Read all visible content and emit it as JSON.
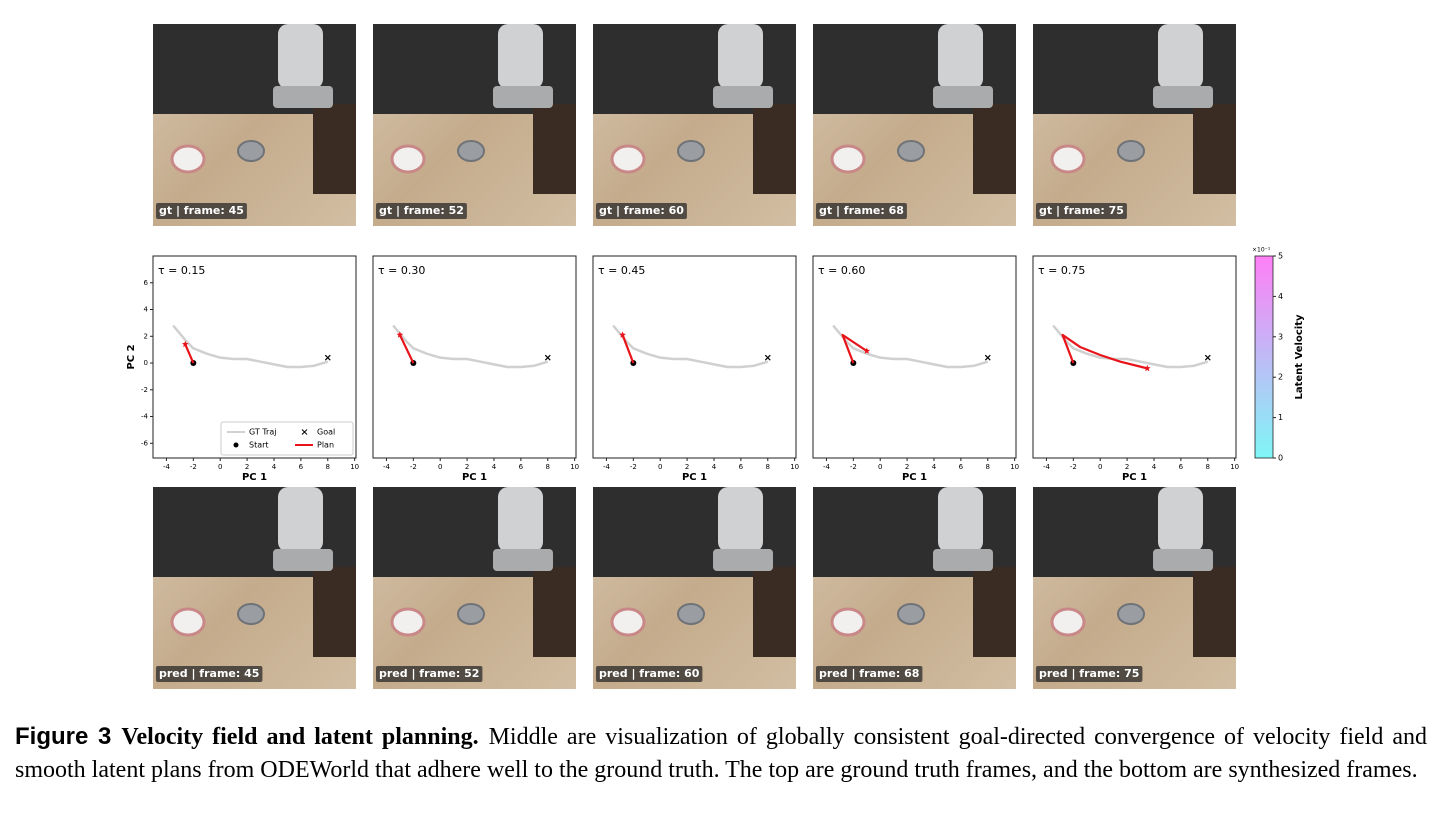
{
  "frames": {
    "gt": [
      "gt | frame: 45",
      "gt | frame: 52",
      "gt | frame: 60",
      "gt | frame: 68",
      "gt | frame: 75"
    ],
    "pred": [
      "pred | frame: 45",
      "pred | frame: 52",
      "pred | frame: 60",
      "pred | frame: 68",
      "pred | frame: 75"
    ]
  },
  "chart_data": [
    {
      "type": "line",
      "annotation": "τ = 0.15",
      "xlabel": "PC 1",
      "ylabel": "PC 2",
      "legend": "lower center",
      "xlim": [
        -5,
        10.1
      ],
      "xticks": [
        -4,
        -2,
        0,
        2,
        4,
        6,
        8,
        10
      ],
      "ylim": [
        -7.1,
        8
      ],
      "yticks": [
        -6,
        -4,
        -2,
        0,
        2,
        4,
        6
      ],
      "series": [
        {
          "name": "GT Traj",
          "marker": "line",
          "color": "#d0d0d0",
          "x": [
            -3.5,
            -3,
            -2.5,
            -2,
            -1,
            0,
            1,
            2,
            3,
            4,
            5,
            6,
            7,
            8
          ],
          "values": [
            2.8,
            2.2,
            1.6,
            1.1,
            0.7,
            0.4,
            0.3,
            0.3,
            0.1,
            -0.1,
            -0.3,
            -0.3,
            -0.2,
            0.1
          ]
        },
        {
          "name": "Start",
          "marker": "o",
          "color": "#000000",
          "x": [
            -2
          ],
          "values": [
            0
          ]
        },
        {
          "name": "Goal",
          "marker": "x",
          "color": "#000000",
          "x": [
            8
          ],
          "values": [
            0.4
          ]
        },
        {
          "name": "Plan",
          "marker": "*",
          "color": "#e8141a",
          "x": [
            -2,
            -2.6
          ],
          "values": [
            0,
            1.4
          ]
        }
      ]
    },
    {
      "type": "line",
      "annotation": "τ = 0.30",
      "xlabel": "PC 1",
      "xlim": [
        -5,
        10.1
      ],
      "xticks": [
        -4,
        -2,
        0,
        2,
        4,
        6,
        8,
        10
      ],
      "ylim": [
        -7.1,
        8
      ],
      "series": [
        {
          "marker": "line",
          "color": "#d0d0d0",
          "x": [
            -3.5,
            -3,
            -2.5,
            -2,
            -1,
            0,
            1,
            2,
            3,
            4,
            5,
            6,
            7,
            8
          ],
          "values": [
            2.8,
            2.2,
            1.6,
            1.1,
            0.7,
            0.4,
            0.3,
            0.3,
            0.1,
            -0.1,
            -0.3,
            -0.3,
            -0.2,
            0.1
          ]
        },
        {
          "marker": "o",
          "color": "#000000",
          "x": [
            -2
          ],
          "values": [
            0
          ]
        },
        {
          "marker": "x",
          "color": "#000000",
          "x": [
            8
          ],
          "values": [
            0.4
          ]
        },
        {
          "marker": "*",
          "color": "#e8141a",
          "x": [
            -2,
            -3
          ],
          "values": [
            0,
            2.1
          ]
        }
      ]
    },
    {
      "type": "line",
      "annotation": "τ = 0.45",
      "xlabel": "PC 1",
      "xlim": [
        -5,
        10.1
      ],
      "xticks": [
        -4,
        -2,
        0,
        2,
        4,
        6,
        8,
        10
      ],
      "ylim": [
        -7.1,
        8
      ],
      "series": [
        {
          "marker": "line",
          "color": "#d0d0d0",
          "x": [
            -3.5,
            -3,
            -2.5,
            -2,
            -1,
            0,
            1,
            2,
            3,
            4,
            5,
            6,
            7,
            8
          ],
          "values": [
            2.8,
            2.2,
            1.6,
            1.1,
            0.7,
            0.4,
            0.3,
            0.3,
            0.1,
            -0.1,
            -0.3,
            -0.3,
            -0.2,
            0.1
          ]
        },
        {
          "marker": "o",
          "color": "#000000",
          "x": [
            -2
          ],
          "values": [
            0
          ]
        },
        {
          "marker": "x",
          "color": "#000000",
          "x": [
            8
          ],
          "values": [
            0.4
          ]
        },
        {
          "marker": "*",
          "color": "#e8141a",
          "x": [
            -2,
            -2.8
          ],
          "values": [
            0,
            2.1
          ]
        }
      ]
    },
    {
      "type": "line",
      "annotation": "τ = 0.60",
      "xlabel": "PC 1",
      "xlim": [
        -5,
        10.1
      ],
      "xticks": [
        -4,
        -2,
        0,
        2,
        4,
        6,
        8,
        10
      ],
      "ylim": [
        -7.1,
        8
      ],
      "series": [
        {
          "marker": "line",
          "color": "#d0d0d0",
          "x": [
            -3.5,
            -3,
            -2.5,
            -2,
            -1,
            0,
            1,
            2,
            3,
            4,
            5,
            6,
            7,
            8
          ],
          "values": [
            2.8,
            2.2,
            1.6,
            1.1,
            0.7,
            0.4,
            0.3,
            0.3,
            0.1,
            -0.1,
            -0.3,
            -0.3,
            -0.2,
            0.1
          ]
        },
        {
          "marker": "o",
          "color": "#000000",
          "x": [
            -2
          ],
          "values": [
            0
          ]
        },
        {
          "marker": "x",
          "color": "#000000",
          "x": [
            8
          ],
          "values": [
            0.4
          ]
        },
        {
          "marker": "*",
          "color": "#e8141a",
          "x": [
            -2,
            -2.8,
            -1
          ],
          "values": [
            0,
            2.1,
            0.9
          ]
        }
      ]
    },
    {
      "type": "line",
      "annotation": "τ = 0.75",
      "xlabel": "PC 1",
      "xlim": [
        -5,
        10.1
      ],
      "xticks": [
        -4,
        -2,
        0,
        2,
        4,
        6,
        8,
        10
      ],
      "ylim": [
        -7.1,
        8
      ],
      "series": [
        {
          "marker": "line",
          "color": "#d0d0d0",
          "x": [
            -3.5,
            -3,
            -2.5,
            -2,
            -1,
            0,
            1,
            2,
            3,
            4,
            5,
            6,
            7,
            8
          ],
          "values": [
            2.8,
            2.2,
            1.6,
            1.1,
            0.7,
            0.4,
            0.3,
            0.3,
            0.1,
            -0.1,
            -0.3,
            -0.3,
            -0.2,
            0.1
          ]
        },
        {
          "marker": "o",
          "color": "#000000",
          "x": [
            -2
          ],
          "values": [
            0
          ]
        },
        {
          "marker": "x",
          "color": "#000000",
          "x": [
            8
          ],
          "values": [
            0.4
          ]
        },
        {
          "marker": "*",
          "color": "#e8141a",
          "x": [
            -2,
            -2.8,
            -1.5,
            0,
            1.5,
            3.5
          ],
          "values": [
            0,
            2.1,
            1.2,
            0.6,
            0.1,
            -0.4
          ]
        }
      ]
    }
  ],
  "colorbar": {
    "label": "Latent Velocity",
    "scale_label": "×10⁻¹",
    "ylim": [
      0,
      5
    ],
    "yticks": [
      0,
      1,
      2,
      3,
      4,
      5
    ],
    "colors": [
      "#7ff6f6",
      "#ff7ff6"
    ]
  },
  "caption": {
    "label": "Figure 3",
    "title": "Velocity field and latent planning.",
    "text": "Middle are visualization of globally consistent goal-directed convergence of velocity field and smooth latent plans from ODEWorld that adhere well to the ground truth. The top are ground truth frames, and the bottom are synthesized frames."
  }
}
